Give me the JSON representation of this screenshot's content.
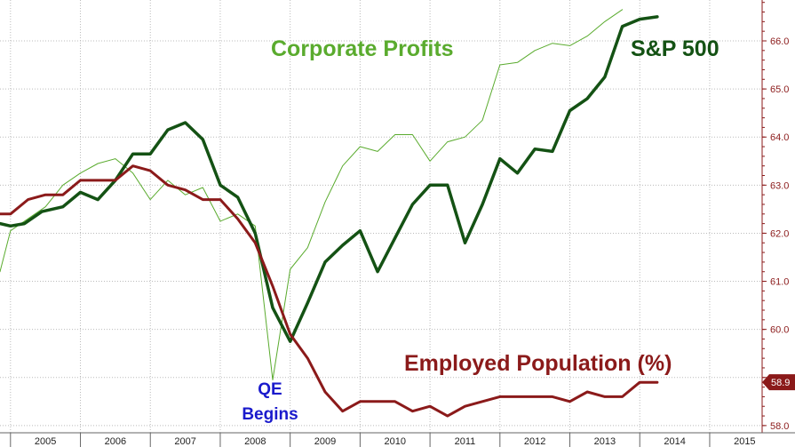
{
  "chart_data": {
    "type": "line",
    "title": "",
    "xlabel": "",
    "ylabel": "",
    "x_axis": {
      "type": "date",
      "range": [
        "2004.85",
        "2015.75"
      ],
      "tick_labels": [
        "2005",
        "2006",
        "2007",
        "2008",
        "2009",
        "2010",
        "2011",
        "2012",
        "2013",
        "2014",
        "2015"
      ]
    },
    "y_axis_right": {
      "range": [
        57.85,
        66.85
      ],
      "ticks": [
        58.0,
        59.0,
        60.0,
        61.0,
        62.0,
        63.0,
        64.0,
        65.0,
        66.0
      ],
      "tick_labels": [
        "58.0",
        "59.0",
        "60.0",
        "61.0",
        "62.0",
        "63.0",
        "64.0",
        "65.0",
        "66.0"
      ],
      "last_value_label": "58.9",
      "last_value_color": "#8b1a1a"
    },
    "grid": true,
    "legend": "none",
    "annotations": [
      {
        "id": "corporate_profits",
        "text": "Corporate Profits",
        "color": "#5aab2e"
      },
      {
        "id": "sp500",
        "text": "S&P 500",
        "color": "#145214"
      },
      {
        "id": "employed",
        "text": "Employed Population (%)",
        "color": "#8b1a1a"
      },
      {
        "id": "qe_line1",
        "text": "QE",
        "color": "#1a1acc"
      },
      {
        "id": "qe_line2",
        "text": "Begins",
        "color": "#1a1acc"
      }
    ],
    "series": [
      {
        "id": "employed_population",
        "color": "#8b1a1a",
        "stroke": 3,
        "unit_axis": "right",
        "points": [
          [
            2004.85,
            62.4
          ],
          [
            2005.0,
            62.4
          ],
          [
            2005.25,
            62.7
          ],
          [
            2005.5,
            62.8
          ],
          [
            2005.75,
            62.8
          ],
          [
            2006.0,
            63.1
          ],
          [
            2006.25,
            63.1
          ],
          [
            2006.5,
            63.1
          ],
          [
            2006.75,
            63.4
          ],
          [
            2007.0,
            63.3
          ],
          [
            2007.25,
            63.0
          ],
          [
            2007.5,
            62.9
          ],
          [
            2007.75,
            62.7
          ],
          [
            2008.0,
            62.7
          ],
          [
            2008.25,
            62.3
          ],
          [
            2008.5,
            61.8
          ],
          [
            2008.75,
            60.9
          ],
          [
            2009.0,
            59.9
          ],
          [
            2009.25,
            59.4
          ],
          [
            2009.5,
            58.7
          ],
          [
            2009.75,
            58.3
          ],
          [
            2010.0,
            58.5
          ],
          [
            2010.25,
            58.5
          ],
          [
            2010.5,
            58.5
          ],
          [
            2010.75,
            58.3
          ],
          [
            2011.0,
            58.4
          ],
          [
            2011.25,
            58.2
          ],
          [
            2011.5,
            58.4
          ],
          [
            2011.75,
            58.5
          ],
          [
            2012.0,
            58.6
          ],
          [
            2012.25,
            58.6
          ],
          [
            2012.5,
            58.6
          ],
          [
            2012.75,
            58.6
          ],
          [
            2013.0,
            58.5
          ],
          [
            2013.25,
            58.7
          ],
          [
            2013.5,
            58.6
          ],
          [
            2013.75,
            58.6
          ],
          [
            2014.0,
            58.9
          ],
          [
            2014.25,
            58.9
          ]
        ]
      },
      {
        "id": "sp500",
        "color": "#145214",
        "stroke": 3.5,
        "unit_axis": "right-scaled",
        "points": [
          [
            2004.85,
            62.2
          ],
          [
            2005.0,
            62.15
          ],
          [
            2005.2,
            62.2
          ],
          [
            2005.45,
            62.45
          ],
          [
            2005.75,
            62.55
          ],
          [
            2006.0,
            62.85
          ],
          [
            2006.25,
            62.7
          ],
          [
            2006.5,
            63.1
          ],
          [
            2006.75,
            63.65
          ],
          [
            2007.0,
            63.65
          ],
          [
            2007.25,
            64.15
          ],
          [
            2007.5,
            64.3
          ],
          [
            2007.75,
            63.95
          ],
          [
            2008.0,
            63.0
          ],
          [
            2008.25,
            62.75
          ],
          [
            2008.5,
            62.0
          ],
          [
            2008.75,
            60.45
          ],
          [
            2009.0,
            59.75
          ],
          [
            2009.25,
            60.55
          ],
          [
            2009.5,
            61.4
          ],
          [
            2009.75,
            61.75
          ],
          [
            2010.0,
            62.05
          ],
          [
            2010.25,
            61.2
          ],
          [
            2010.5,
            61.9
          ],
          [
            2010.75,
            62.6
          ],
          [
            2011.0,
            63.0
          ],
          [
            2011.25,
            63.0
          ],
          [
            2011.5,
            61.8
          ],
          [
            2011.75,
            62.6
          ],
          [
            2012.0,
            63.55
          ],
          [
            2012.25,
            63.25
          ],
          [
            2012.5,
            63.75
          ],
          [
            2012.75,
            63.7
          ],
          [
            2013.0,
            64.55
          ],
          [
            2013.25,
            64.8
          ],
          [
            2013.5,
            65.25
          ],
          [
            2013.75,
            66.3
          ],
          [
            2014.0,
            66.45
          ],
          [
            2014.25,
            66.5
          ]
        ]
      },
      {
        "id": "corporate_profits",
        "color": "#5aab2e",
        "stroke": 1,
        "unit_axis": "right-scaled",
        "points": [
          [
            2004.85,
            61.2
          ],
          [
            2005.0,
            62.05
          ],
          [
            2005.25,
            62.3
          ],
          [
            2005.5,
            62.55
          ],
          [
            2005.75,
            63.0
          ],
          [
            2006.0,
            63.25
          ],
          [
            2006.25,
            63.45
          ],
          [
            2006.5,
            63.55
          ],
          [
            2006.75,
            63.25
          ],
          [
            2007.0,
            62.7
          ],
          [
            2007.25,
            63.1
          ],
          [
            2007.5,
            62.8
          ],
          [
            2007.75,
            62.95
          ],
          [
            2008.0,
            62.25
          ],
          [
            2008.25,
            62.4
          ],
          [
            2008.5,
            62.15
          ],
          [
            2008.75,
            58.95
          ],
          [
            2009.0,
            61.25
          ],
          [
            2009.25,
            61.7
          ],
          [
            2009.5,
            62.65
          ],
          [
            2009.75,
            63.4
          ],
          [
            2010.0,
            63.8
          ],
          [
            2010.25,
            63.7
          ],
          [
            2010.5,
            64.05
          ],
          [
            2010.75,
            64.05
          ],
          [
            2011.0,
            63.5
          ],
          [
            2011.25,
            63.9
          ],
          [
            2011.5,
            64.0
          ],
          [
            2011.75,
            64.35
          ],
          [
            2012.0,
            65.5
          ],
          [
            2012.25,
            65.55
          ],
          [
            2012.5,
            65.8
          ],
          [
            2012.75,
            65.95
          ],
          [
            2013.0,
            65.9
          ],
          [
            2013.25,
            66.1
          ],
          [
            2013.5,
            66.4
          ],
          [
            2013.75,
            66.65
          ]
        ]
      }
    ]
  }
}
